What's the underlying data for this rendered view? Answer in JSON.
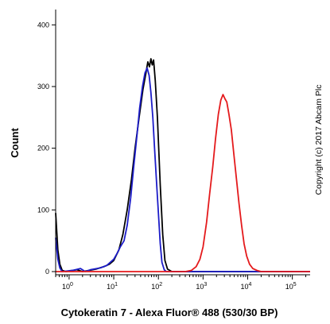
{
  "chart_data": {
    "type": "line",
    "xlabel": "Cytokeratin 7 - Alexa Fluor® 488 (530/30 BP)",
    "ylabel": "Count",
    "annotation": "Copyright (c) 2017 Abcam Plc",
    "x_scale": "log",
    "xlim": [
      0.5,
      250000
    ],
    "ylim": [
      0,
      430
    ],
    "x_ticks": [
      {
        "base": "10",
        "exp": "0",
        "value": 1
      },
      {
        "base": "10",
        "exp": "1",
        "value": 10
      },
      {
        "base": "10",
        "exp": "2",
        "value": 100
      },
      {
        "base": "10",
        "exp": "3",
        "value": 1000
      },
      {
        "base": "10",
        "exp": "4",
        "value": 10000
      },
      {
        "base": "10",
        "exp": "5",
        "value": 100000
      }
    ],
    "y_ticks": [
      0,
      100,
      200,
      300,
      400
    ],
    "grid": false,
    "series": [
      {
        "color": "#000000",
        "points": [
          [
            0.5,
            95
          ],
          [
            0.56,
            35
          ],
          [
            0.62,
            12
          ],
          [
            0.7,
            2
          ],
          [
            0.85,
            0
          ],
          [
            1.5,
            3
          ],
          [
            2,
            0
          ],
          [
            4,
            4
          ],
          [
            6,
            8
          ],
          [
            8,
            12
          ],
          [
            10,
            18
          ],
          [
            13,
            35
          ],
          [
            16,
            60
          ],
          [
            20,
            100
          ],
          [
            25,
            150
          ],
          [
            30,
            200
          ],
          [
            37,
            250
          ],
          [
            45,
            295
          ],
          [
            52,
            320
          ],
          [
            58,
            340
          ],
          [
            63,
            332
          ],
          [
            68,
            345
          ],
          [
            73,
            335
          ],
          [
            78,
            343
          ],
          [
            85,
            310
          ],
          [
            95,
            250
          ],
          [
            110,
            140
          ],
          [
            125,
            60
          ],
          [
            140,
            18
          ],
          [
            160,
            4
          ],
          [
            200,
            0
          ],
          [
            250000,
            0
          ]
        ]
      },
      {
        "color": "#1c1cc8",
        "points": [
          [
            0.5,
            55
          ],
          [
            0.56,
            20
          ],
          [
            0.62,
            6
          ],
          [
            0.7,
            0
          ],
          [
            1.2,
            2
          ],
          [
            1.8,
            5
          ],
          [
            2.3,
            0
          ],
          [
            3,
            3
          ],
          [
            5,
            6
          ],
          [
            7,
            10
          ],
          [
            10,
            20
          ],
          [
            12,
            30
          ],
          [
            14,
            40
          ],
          [
            17,
            50
          ],
          [
            20,
            75
          ],
          [
            24,
            120
          ],
          [
            28,
            170
          ],
          [
            33,
            220
          ],
          [
            38,
            265
          ],
          [
            44,
            300
          ],
          [
            50,
            322
          ],
          [
            56,
            330
          ],
          [
            62,
            318
          ],
          [
            68,
            290
          ],
          [
            75,
            250
          ],
          [
            82,
            200
          ],
          [
            90,
            150
          ],
          [
            100,
            95
          ],
          [
            110,
            45
          ],
          [
            120,
            15
          ],
          [
            135,
            3
          ],
          [
            150,
            0
          ],
          [
            250000,
            0
          ]
        ]
      },
      {
        "color": "#e41a1c",
        "points": [
          [
            0.5,
            0
          ],
          [
            400,
            0
          ],
          [
            550,
            2
          ],
          [
            700,
            8
          ],
          [
            850,
            20
          ],
          [
            1000,
            40
          ],
          [
            1200,
            80
          ],
          [
            1400,
            125
          ],
          [
            1650,
            170
          ],
          [
            1900,
            215
          ],
          [
            2200,
            255
          ],
          [
            2500,
            278
          ],
          [
            2800,
            287
          ],
          [
            3100,
            280
          ],
          [
            3400,
            275
          ],
          [
            3800,
            255
          ],
          [
            4300,
            230
          ],
          [
            4900,
            190
          ],
          [
            5600,
            150
          ],
          [
            6400,
            110
          ],
          [
            7300,
            75
          ],
          [
            8300,
            45
          ],
          [
            9500,
            25
          ],
          [
            11000,
            12
          ],
          [
            13000,
            5
          ],
          [
            16000,
            2
          ],
          [
            20000,
            0
          ],
          [
            250000,
            0
          ]
        ]
      }
    ]
  }
}
